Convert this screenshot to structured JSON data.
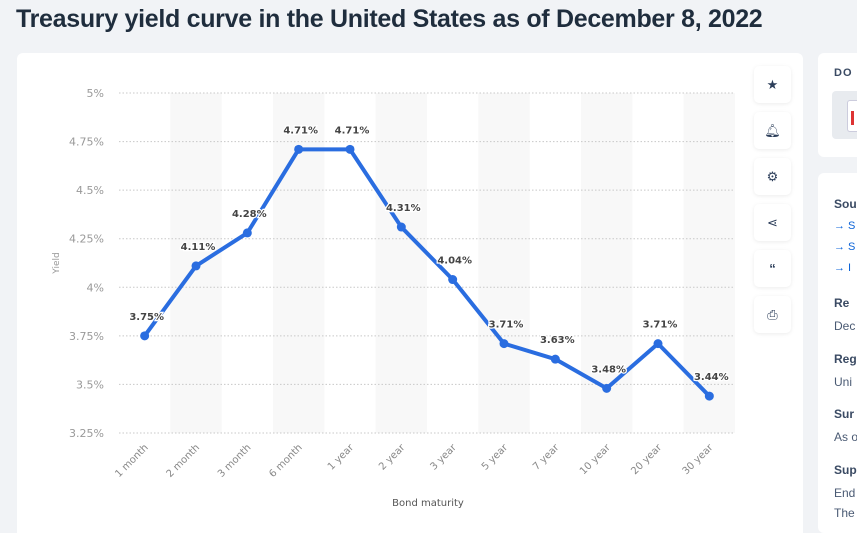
{
  "title": "Treasury yield curve in the United States as of December 8, 2022",
  "toolbar": {
    "icons": [
      "star-icon",
      "bell-icon",
      "gear-icon",
      "share-icon",
      "quote-icon",
      "print-icon"
    ]
  },
  "side": {
    "download_heading": "DO",
    "source_heading": "Sou",
    "source_links": [
      "→ S",
      "→ S",
      "→ I"
    ],
    "release_heading": "Re",
    "release_value": "Dec",
    "region_heading": "Reg",
    "region_value": "Uni",
    "survey_heading": "Sur",
    "survey_value": "As o",
    "supp_heading": "Sup",
    "supp_lines": [
      "End",
      "The"
    ]
  },
  "chart_data": {
    "type": "line",
    "title": "",
    "xlabel": "Bond maturity",
    "ylabel": "Yield",
    "categories": [
      "1 month",
      "2 month",
      "3 month",
      "6 month",
      "1 year",
      "2 year",
      "3 year",
      "5 year",
      "7 year",
      "10 year",
      "20 year",
      "30 year"
    ],
    "values": [
      3.75,
      4.11,
      4.28,
      4.71,
      4.71,
      4.31,
      4.04,
      3.71,
      3.63,
      3.48,
      3.71,
      3.44
    ],
    "data_labels": [
      "3.75%",
      "4.11%",
      "4.28%",
      "4.71%",
      "4.71%",
      "4.31%",
      "4.04%",
      "3.71%",
      "3.63%",
      "3.48%",
      "3.71%",
      "3.44%"
    ],
    "ylim": [
      3.25,
      5
    ],
    "yticks": [
      "3.25%",
      "3.5%",
      "3.75%",
      "4%",
      "4.25%",
      "4.5%",
      "4.75%",
      "5%"
    ],
    "grid": true,
    "line_color": "#2a6de0"
  }
}
